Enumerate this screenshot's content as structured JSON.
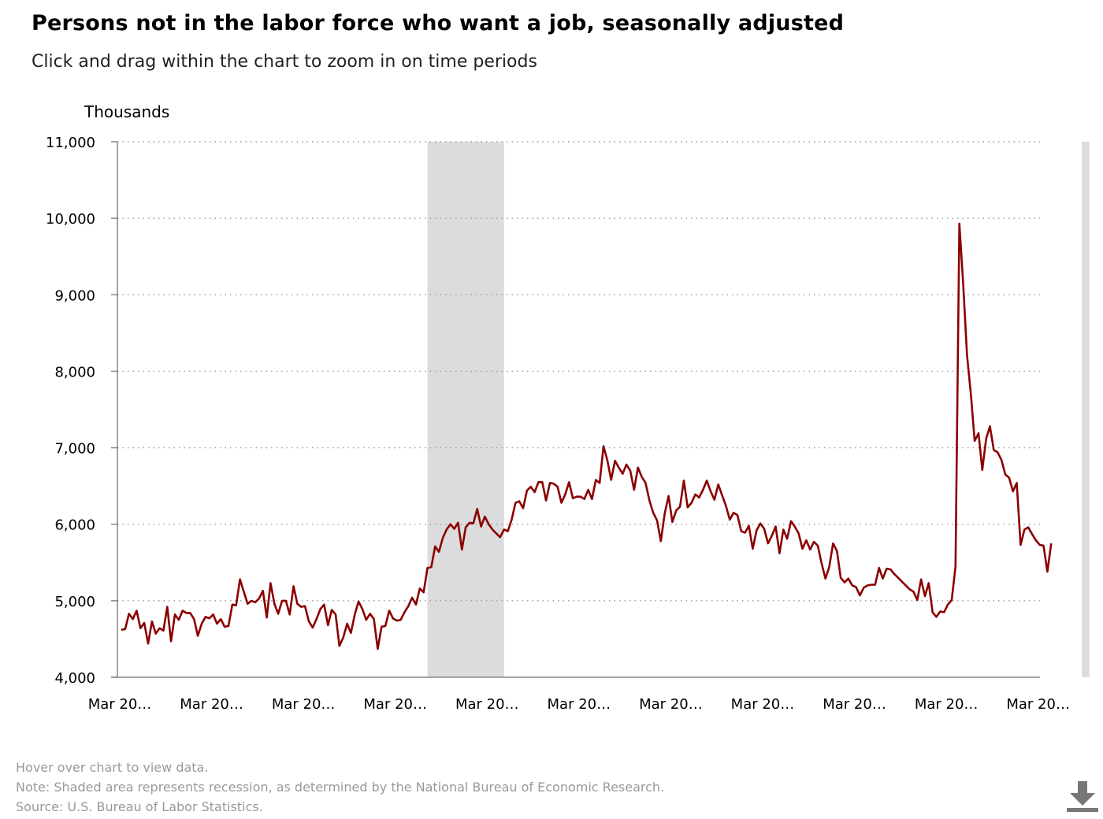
{
  "title": "Persons not in the labor force who want a job, seasonally adjusted",
  "subtitle": "Click and drag within the chart to zoom in on time periods",
  "footer": {
    "hover": "Hover over chart to view data.",
    "note": "Note: Shaded area represents recession, as determined by the National Bureau of Economic Research.",
    "source": "Source: U.S. Bureau of Labor Statistics."
  },
  "download_icon": "download-icon",
  "colors": {
    "line": "#8b0000",
    "recession": "#dcdcdc",
    "grid": "#9a9a9a",
    "axis": "#888888"
  },
  "chart_data": {
    "type": "line",
    "ylabel": "Thousands",
    "ylim": [
      4000,
      11000
    ],
    "yticks": [
      4000,
      5000,
      6000,
      7000,
      8000,
      9000,
      10000,
      11000
    ],
    "ytick_labels": [
      "4,000",
      "5,000",
      "6,000",
      "7,000",
      "8,000",
      "9,000",
      "10,000",
      "11,000"
    ],
    "xtick_labels": [
      "Mar 20…",
      "Mar 20…",
      "Mar 20…",
      "Mar 20…",
      "Mar 20…",
      "Mar 20…",
      "Mar 20…",
      "Mar 20…",
      "Mar 20…",
      "Mar 20…",
      "Mar 20…"
    ],
    "x_frequency": "monthly",
    "months_between_xticks": 24,
    "recessions_month_index": [
      [
        80,
        100
      ],
      [
        251,
        253
      ]
    ],
    "grid": "horizontal dotted",
    "series": [
      {
        "values": [
          4620,
          4630,
          4830,
          4760,
          4870,
          4640,
          4710,
          4440,
          4730,
          4570,
          4640,
          4610,
          4920,
          4470,
          4820,
          4750,
          4870,
          4840,
          4840,
          4760,
          4540,
          4700,
          4790,
          4770,
          4820,
          4700,
          4760,
          4660,
          4670,
          4950,
          4940,
          5280,
          5120,
          4960,
          5000,
          4980,
          5030,
          5130,
          4780,
          5230,
          4960,
          4830,
          5000,
          5000,
          4820,
          5190,
          4960,
          4920,
          4930,
          4730,
          4650,
          4760,
          4890,
          4950,
          4680,
          4880,
          4820,
          4410,
          4520,
          4700,
          4580,
          4820,
          4990,
          4890,
          4750,
          4830,
          4760,
          4370,
          4660,
          4670,
          4870,
          4770,
          4740,
          4750,
          4850,
          4930,
          5040,
          4950,
          5160,
          5110,
          5430,
          5440,
          5710,
          5640,
          5820,
          5930,
          6000,
          5940,
          6020,
          5670,
          5960,
          6020,
          6010,
          6200,
          5970,
          6100,
          6000,
          5930,
          5880,
          5830,
          5930,
          5910,
          6060,
          6280,
          6300,
          6210,
          6440,
          6490,
          6420,
          6550,
          6550,
          6310,
          6540,
          6530,
          6490,
          6280,
          6390,
          6550,
          6340,
          6360,
          6360,
          6330,
          6450,
          6330,
          6580,
          6540,
          7020,
          6840,
          6580,
          6830,
          6740,
          6660,
          6780,
          6700,
          6450,
          6740,
          6620,
          6540,
          6310,
          6150,
          6050,
          5780,
          6140,
          6370,
          6030,
          6180,
          6230,
          6570,
          6220,
          6280,
          6390,
          6350,
          6450,
          6570,
          6430,
          6320,
          6520,
          6380,
          6240,
          6060,
          6150,
          6120,
          5910,
          5890,
          5980,
          5680,
          5920,
          6010,
          5940,
          5750,
          5850,
          5970,
          5620,
          5930,
          5810,
          6040,
          5970,
          5880,
          5680,
          5790,
          5670,
          5770,
          5720,
          5490,
          5290,
          5440,
          5750,
          5650,
          5300,
          5240,
          5290,
          5200,
          5180,
          5070,
          5170,
          5200,
          5210,
          5210,
          5430,
          5290,
          5420,
          5410,
          5350,
          5300,
          5250,
          5200,
          5150,
          5120,
          5010,
          5280,
          5060,
          5230,
          4850,
          4790,
          4860,
          4850,
          4950,
          5010,
          5450,
          9930,
          9150,
          8210,
          7700,
          7090,
          7190,
          6710,
          7120,
          7280,
          6970,
          6940,
          6840,
          6650,
          6610,
          6430,
          6540,
          5730,
          5930,
          5960,
          5870,
          5790,
          5730,
          5720,
          5380,
          5750
        ]
      }
    ]
  }
}
